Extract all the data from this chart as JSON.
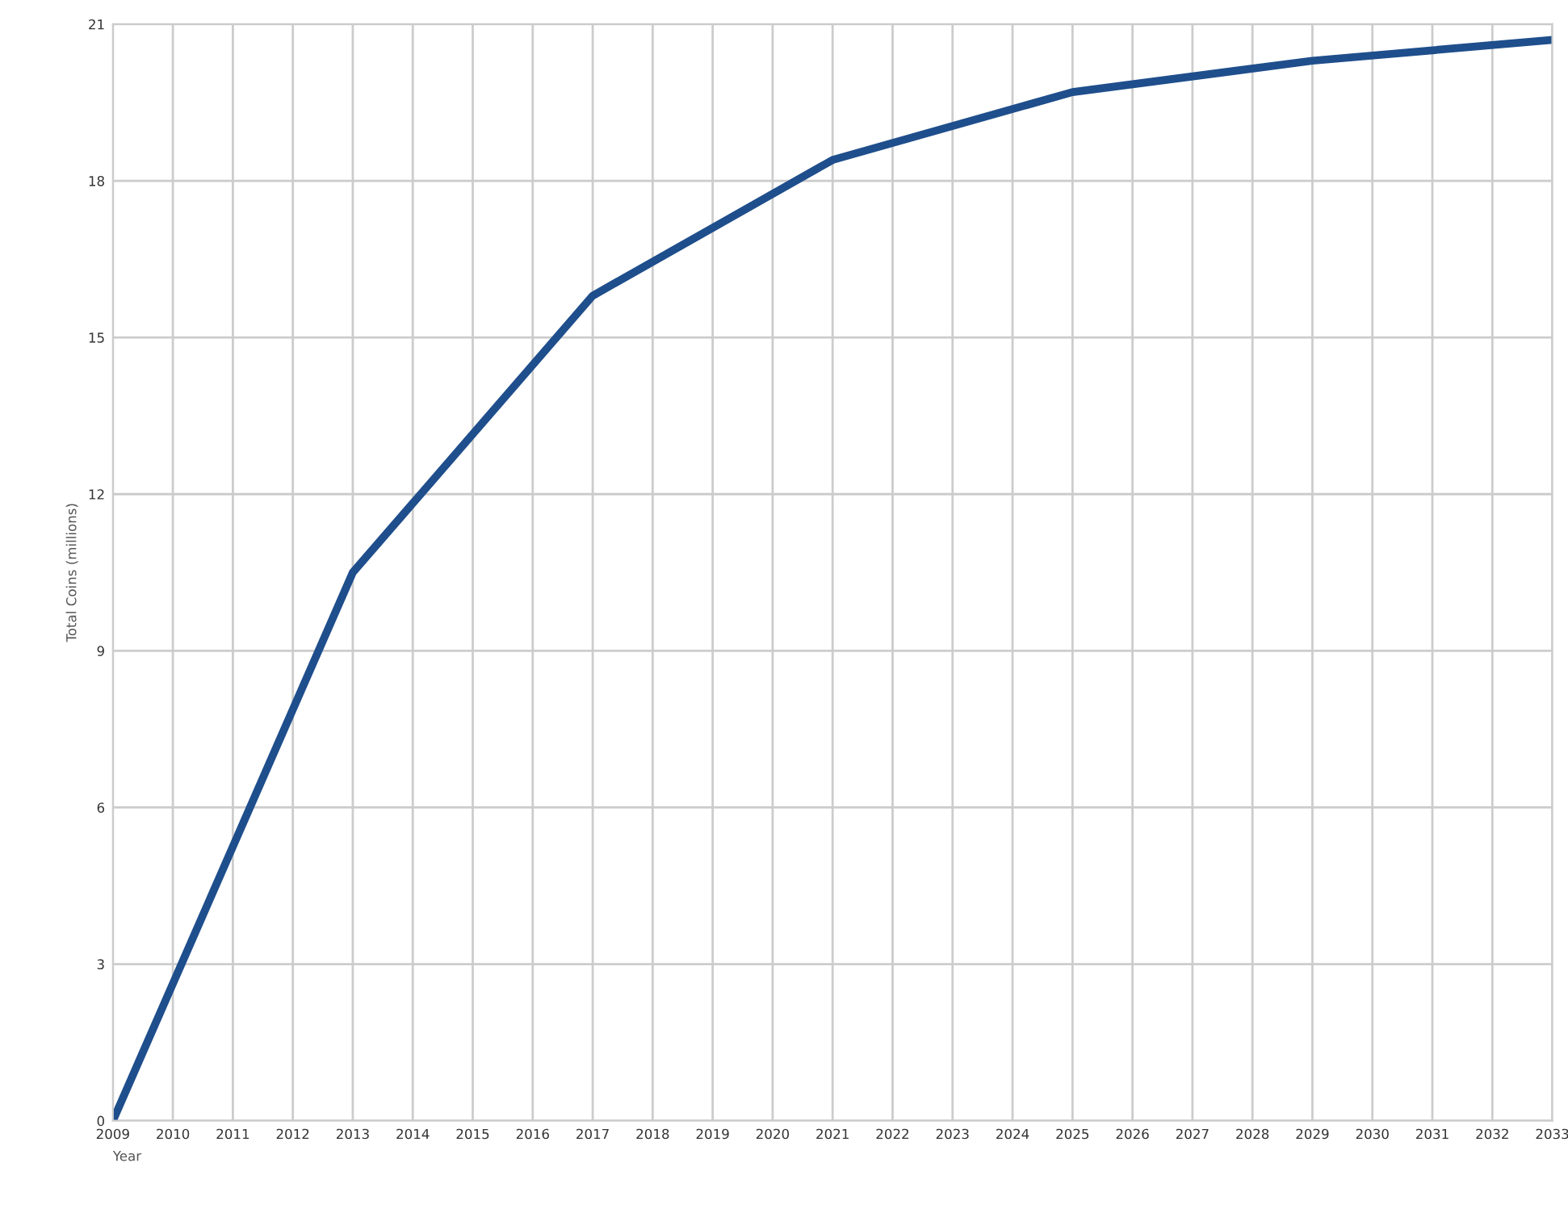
{
  "chart_data": {
    "type": "line",
    "xlabel": "Year",
    "ylabel": "Total Coins (millions)",
    "series": [
      {
        "color": "#1f4e8c",
        "x": [
          2009,
          2013,
          2017,
          2021,
          2025,
          2029,
          2033
        ],
        "values": [
          0,
          10.5,
          15.8,
          18.4,
          19.7,
          20.3,
          20.7
        ]
      }
    ],
    "xlim": [
      2009,
      2033
    ],
    "xticks": [
      2009,
      2010,
      2011,
      2012,
      2013,
      2014,
      2015,
      2016,
      2017,
      2018,
      2019,
      2020,
      2021,
      2022,
      2023,
      2024,
      2025,
      2026,
      2027,
      2028,
      2029,
      2030,
      2031,
      2032,
      2033
    ],
    "ylim": [
      0,
      21
    ],
    "yticks": [
      0,
      3,
      6,
      9,
      12,
      15,
      18,
      21
    ],
    "grid": true,
    "legend": false
  }
}
